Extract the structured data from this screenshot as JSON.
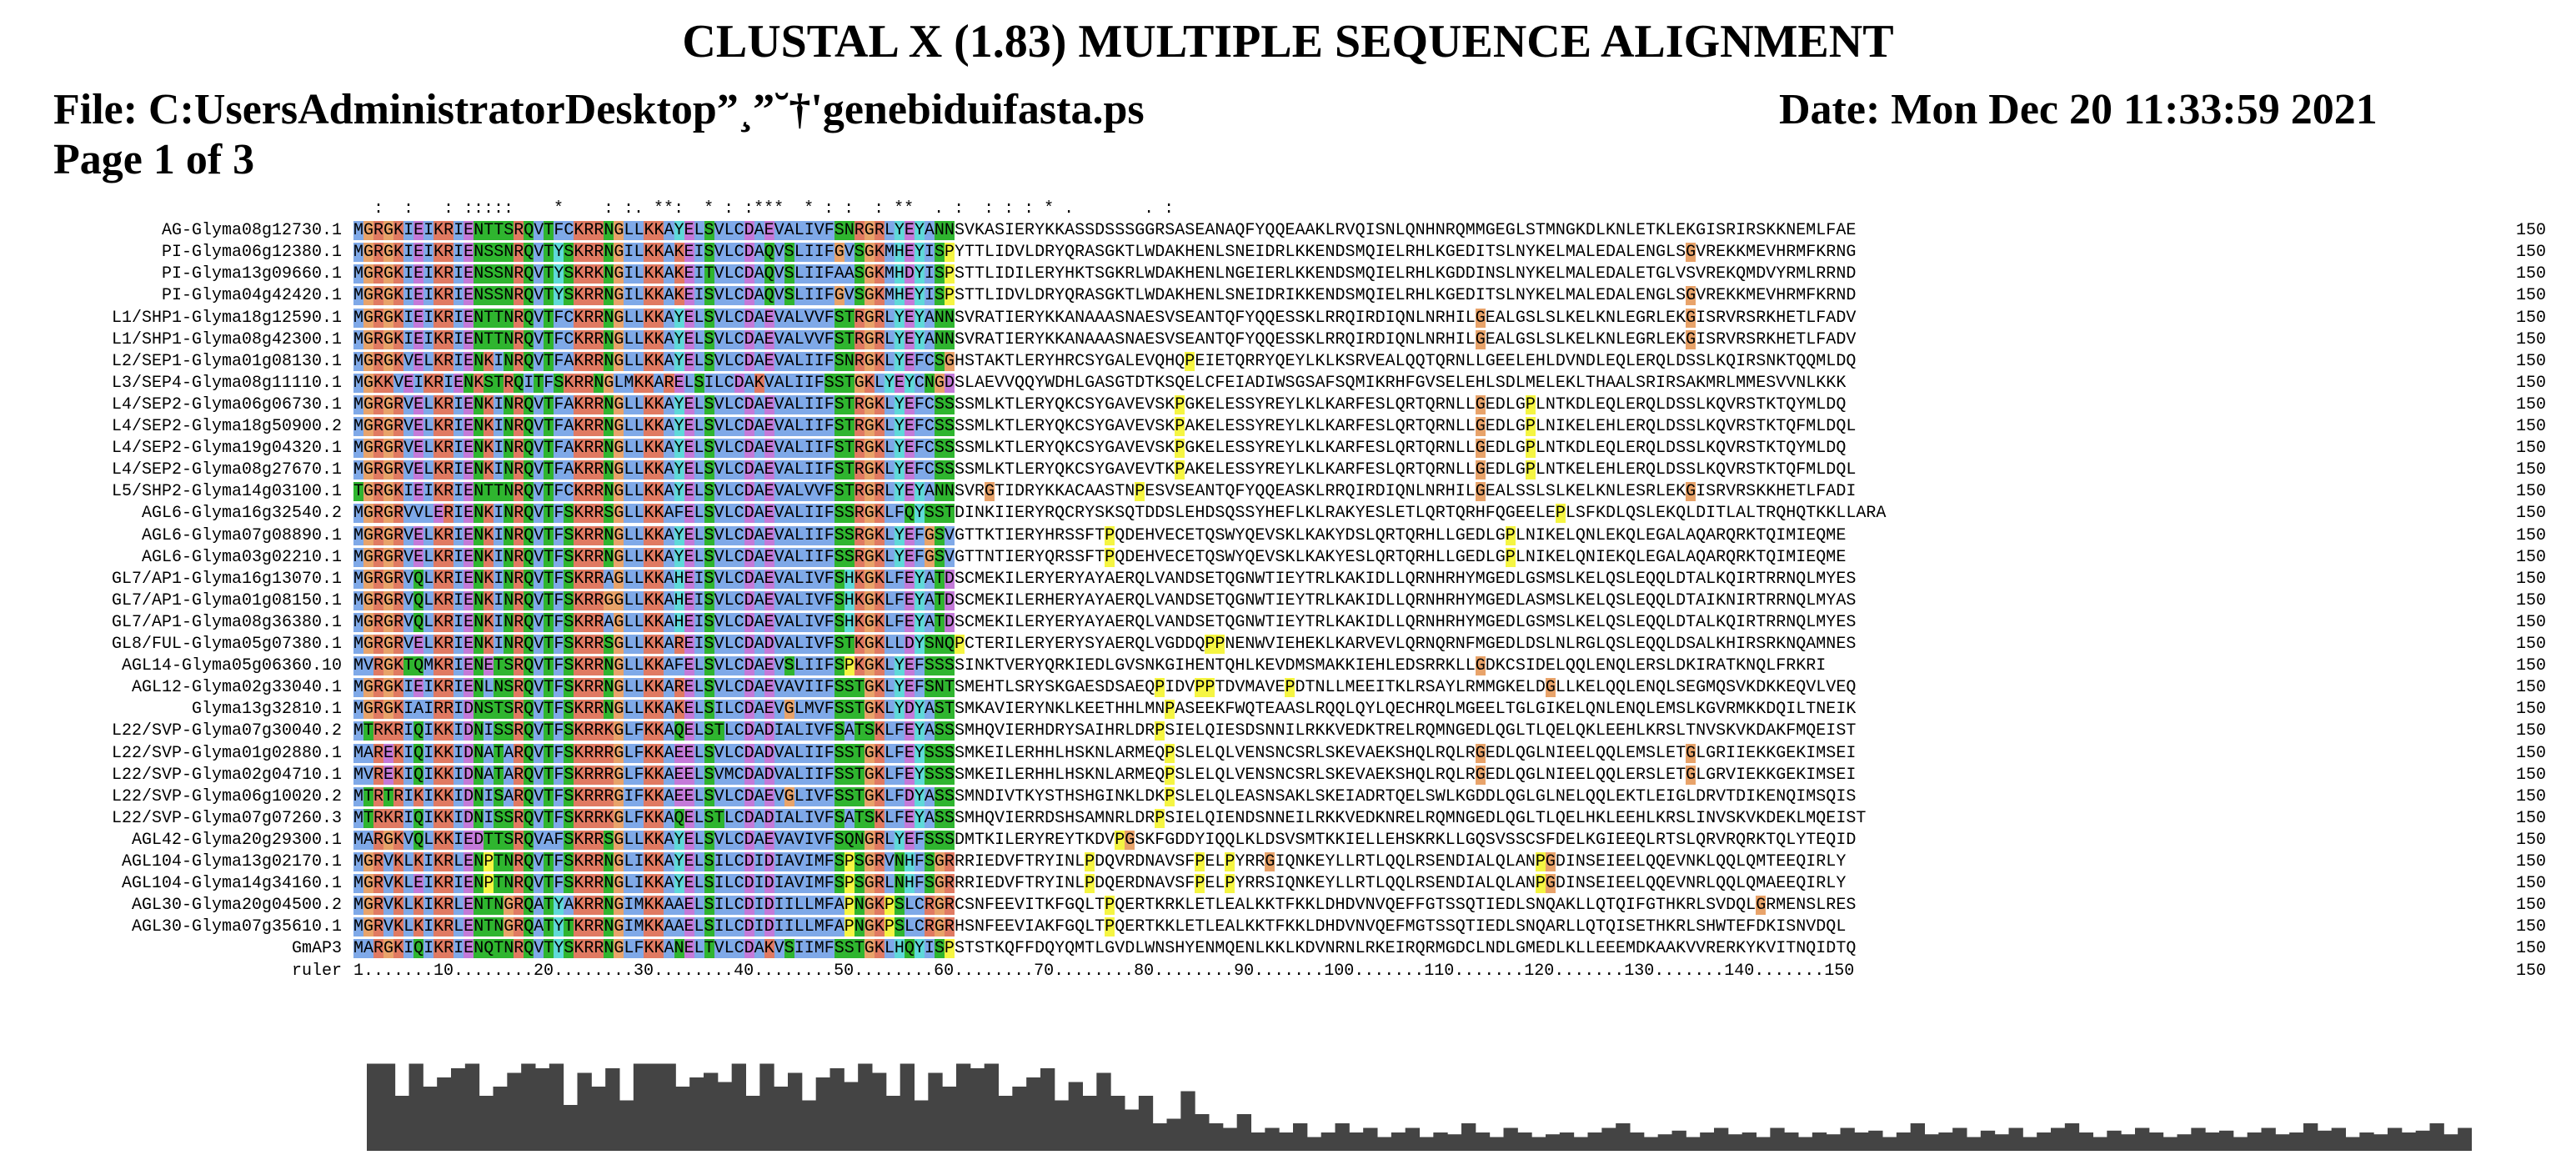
{
  "header": {
    "title": "CLUSTAL X (1.83) MULTIPLE SEQUENCE ALIGNMENT",
    "file": "File: C:UsersAdministratorDesktop”¸”˘†'genebiduifasta.ps",
    "date": "Date: Mon Dec 20 11:33:59 2021",
    "page": "Page 1 of 3"
  },
  "alignment": {
    "conservation_line": "  :  :   : :::::    *    : :. **:  * : :***  * : :  : **  . :  : : : * .       . :",
    "end_position": "150",
    "rows": [
      {
        "name": "AG-Glyma08g12730.1",
        "seq": "MGRGKIEIKRIENTTSRQVTFCKRRNGLLKKAYELSVLCDAEVALIVFSNRGRLYEYANNSVKASIERYKKASSDSSSGGRSASEANAQFYQQEAAKLRVQISNLQNHNRQMMGEGLSTMNGKDLKNLETKLEKGISRIRSKKNEMLFAE"
      },
      {
        "name": "PI-Glyma06g12380.1",
        "seq": "MGRGKIEIKRIENSSNRQVTYSKRRNGILKKAKEISVLCDAQVSLIIFGVSGKMHEYISPYTTLIDVLDRYQRASGKTLWDAKHENLSNEIDRLKKENDSMQIELRHLKGEDITSLNYKELMALEDALENGLSGVREKKMEVHRMFKRNG"
      },
      {
        "name": "PI-Glyma13g09660.1",
        "seq": "MGRGKIEIKRIENSSNRQVTYSKRKNGILKKAKEITVLCDAQVSLIIFAASGKMHDYISPSTTLIDILERYHKTSGKRLWDAKHENLNGEIERLKKENDSMQIELRHLKGDDINSLNYKELMALEDALETGLVSVREKQMDVYRMLRRND"
      },
      {
        "name": "PI-Glyma04g42420.1",
        "seq": "MGRGKIEIKRIENSSNRQVTYSKRRNGILKKAKEISVLCDAQVSLIIFGVSGKMHEYISPSTTLIDVLDRYQRASGKTLWDAKHENLSNEIDRIKKENDSMQIELRHLKGEDITSLNYKELMALEDALENGLSGVREKKMEVHRMFKRND"
      },
      {
        "name": "L1/SHP1-Glyma18g12590.1",
        "seq": "MGRGKIEIKRIENTTNRQVTFCKRRNGLLKKAYELSVLCDAEVALVVFSTRGRLYEYANNSVRATIERYKKANAAASNAESVSEANTQFYQQESSKLRRQIRDIQNLNRHILGEALGSLSLKELKNLEGRLEKGISRVRSRKHETLFADV"
      },
      {
        "name": "L1/SHP1-Glyma08g42300.1",
        "seq": "MGRGKIEIKRIENTTNRQVTFCKRRNGLLKKAYELSVLCDAEVALVVFSTRGRLYEYANNSVRATIERYKKANAAASNAESVSEANTQFYQQESSKLRRQIRDIQNLNRHILGEALGSLSLKELKNLEGRLEKGISRVRSRKHETLFADV"
      },
      {
        "name": "L2/SEP1-Glyma01g08130.1",
        "seq": "MGRGKVELKRIENKINRQVTFAKRRNGLLKKAYELSVLCDAEVALIIFSNRGKLYEFCSGHSTAKTLERYHRCSYGALEVQHQPEIETQRRYQEYLKLKSRVEALQQTQRNLLGEELEHLDVNDLEQLERQLDSSLKQIRSNKTQQMLDQ"
      },
      {
        "name": "L3/SEP4-Glyma08g11110.1",
        "seq": "MGKKVEIKRIENKSTRQITFSKRRNGLMKKARELSILCDAKVALIIFSSTGKLYEYCNGDSLAEVVQQYWDHLGASGTDTKSQELCFEIADIWSGSAFSQMIKRHFGVSELEHLSDLMELEKLTHAALSRIRSAKMRLMMESVVNLKKK"
      },
      {
        "name": "L4/SEP2-Glyma06g06730.1",
        "seq": "MGRGRVELKRIENKINRQVTFAKRRNGLLKKAYELSVLCDAEVALIIFSTRGKLYEFCSSSSMLKTLERYQKCSYGAVEVSKPGKELESSYREYLKLKARFESLQRTQRNLLGEDLGPLNTKDLEQLERQLDSSLKQVRSTKTQYMLDQ"
      },
      {
        "name": "L4/SEP2-Glyma18g50900.2",
        "seq": "MGRGRVELKRIENKINRQVTFAKRRNGLLKKAYELSVLCDAEVALIIFSTRGKLYEFCSSSSMLKTLERYQKCSYGAVEVSKPAKELESSYREYLKLKARFESLQRTQRNLLGEDLGPLNIKELEHLERQLDSSLKQVRSTKTQFMLDQL"
      },
      {
        "name": "L4/SEP2-Glyma19g04320.1",
        "seq": "MGRGRVELKRIENKINRQVTFAKRRNGLLKKAYELSVLCDAEVALIIFSTRGKLYEFCSSSSMLKTLERYQKCSYGAVEVSKPGKELESSYREYLKLKARFESLQRTQRNLLGEDLGPLNTKDLEQLERQLDSSLKQVRSTKTQYMLDQ"
      },
      {
        "name": "L4/SEP2-Glyma08g27670.1",
        "seq": "MGRGRVELKRIENKINRQVTFAKRRNGLLKKAYELSVLCDAEVALIIFSTRGKLYEFCSSSSMLKTLERYQKCSYGAVEVTKPAKELESSYREYLKLKARFESLQRTQRNLLGEDLGPLNTKELEHLERQLDSSLKQVRSTKTQFMLDQL"
      },
      {
        "name": "L5/SHP2-Glyma14g03100.1",
        "seq": "TGRGKIEIKRIENTTNRQVTFCKRRNGLLKKAYELSVLCDAEVALVVFSTRGRLYEYANNSVRGTIDRYKKACAASTNPESVSEANTQFYQQEASKLRRQIRDIQNLNRHILGEALSSLSLKELKNLESRLEKGISRVRSKKHETLFADI"
      },
      {
        "name": "AGL6-Glyma16g32540.2",
        "seq": "MGRGRVVLERIENKINRQVTFSKRRSGLLKKAFELSVLCDAEVALIIFSSRGKLFQYSSTDINKIIERYRQCRYSKSQTDDSLEHDSQSSYHEFLKLRAKYESLETLQRTQRHFQGEELEPLSFKDLQSLEKQLDITLALTRQHQTKKLLARA"
      },
      {
        "name": "AGL6-Glyma07g08890.1",
        "seq": "MGRGRVELKRIENKINRQVTFSKRRNGLLKKAYELSVLCDAEVALIIFSSRGKLYEFGSVGTTKTIERYHRSSFTPQDEHVECETQSWYQEVSKLKAKYDSLQRTQRHLLGEDLGPLNIKELQNLEKQLEGALAQARQRKTQIMIEQME"
      },
      {
        "name": "AGL6-Glyma03g02210.1",
        "seq": "MGRGRVELKRIENKINRQVTFSKRRNGLLKKAYELSVLCDAEVALIIFSSRGKLYEFGSVGTTNTIERYQRSSFTPQDEHVECETQSWYQEVSKLKAKYESLQRTQRHLLGEDLGPLNIKELQNIEKQLEGALAQARQRKTQIMIEQME"
      },
      {
        "name": "GL7/AP1-Glyma16g13070.1",
        "seq": "MGRGRVQLKRIENKINRQVTFSKRRAGLLKKAHEISVLCDAEVALIVFSHKGKLFEYATDSCMEKILERYERYAYAERQLVANDSETQGNWTIEYTRLKAKIDLLQRNHRHYMGEDLGSMSLKELQSLEQQLDTALKQIRTRRNQLMYES"
      },
      {
        "name": "GL7/AP1-Glyma01g08150.1",
        "seq": "MGRGRVQLKRIENKINRQVTFSKRRGGLLKKAHEISVLCDAEVALIVFSHKGKLFEYATDSCMEKILERHERYAYAERQLVANDSETQGNWTIEYTRLKAKIDLLQRNHRHYMGEDLASMSLKELQSLEQQLDTAIKNIRTRRNQLMYAS"
      },
      {
        "name": "GL7/AP1-Glyma08g36380.1",
        "seq": "MGRGRVQLKRIENKINRQVTFSKRRAGLLKKAHEISVLCDAEVALIVFSHKGKLFEYATDSCMEKILERYERYAYAERQLVANDSETQGNWTIEYTRLKAKIDLLQRNHRHYMGEDLGSMSLKELQSLEQQLDTALKQIRTRRNQLMYES"
      },
      {
        "name": "GL8/FUL-Glyma05g07380.1",
        "seq": "MGRGRVELKRIENKINRQVTFSKRRSGLLKKAREISVLCDADVALIVFSTKGKLLDYSNQPCTERILERYERYSYAERQLVGDDQPPNENWVIEHEKLKARVEVLQRNQRNFMGEDLDSLNLRGLQSLEQQLDSALKHIRSRKNQAMNES"
      },
      {
        "name": "AGL14-Glyma05g06360.10",
        "seq": "MVRGKTQMKRIENETSRQVTFSKRRNGLLKKAFELSVLCDAEVSLIIFSPKGKLYEFSSSSINKTVERYQRKIEDLGVSNKGIHENTQHLKEVDMSMAKKIEHLEDSRRKLLGDKCSIDELQQLENQLERSLDKIRATKNQLFRKRI"
      },
      {
        "name": "AGL12-Glyma02g33040.1",
        "seq": "MGRGKIEIKRIENLNSRQVTFSKRRNGLLKKARELSVLCDAEVAVIIFSSTGKLYEFSNTSMEHTLSRYSKGAESDSAEQPIDVPPTDVMAVEPDTNLLMEEITKLRSAYLRMMGKELDGLLKELQQLENQLSEGMQSVKDKKEQVLVEQ"
      },
      {
        "name": "Glyma13g32810.1",
        "seq": "MGRGKIAIRRIDNSTSRQVTFSKRRNGLLKKAKELSILCDAEVGLMVFSSTGKLYDYASTSMKAVIERYNKLKEETHHLMNPASEEKFWQTEAASLRQQLQYLQECHRQLMGEELTGLGIKELQNLENQLEMSLKGVRMKKDQILTNEIK"
      },
      {
        "name": "L22/SVP-Glyma07g30040.2",
        "seq": "MTRKRIQIKKIDNISSRQVTFSKRRKGLFKKAQELSTLCDADIALIVFSATSKLFEYASSSMHQVIERHDRYSAIHRLDRPSIELQIESDSNNILRKKVEDKTRELRQMNGEDLQGLTLQELQKLEEHLKRSLTNVSKVKDAKFMQEIST"
      },
      {
        "name": "L22/SVP-Glyma01g02880.1",
        "seq": "MAREKIQIKKIDNATARQVTFSKRRRGLFKKAEELSVLCDADVALIIFSSTGKLFEYSSSSMKEILERHHLHSKNLARMEQPSLELQLVENSNCSRLSKEVAEKSHQLRQLRGEDLQGLNIEELQQLEMSLETGLGRIIEKKGEKIMSEI"
      },
      {
        "name": "L22/SVP-Glyma02g04710.1",
        "seq": "MVREKIQIKKIDNATARQVTFSKRRRGLFKKAEELSVMCDADVALIIFSSTGKLFEYSSSSMKEILERHHLHSKNLARMEQPSLELQLVENSNCSRLSKEVAEKSHQLRQLRGEDLQGLNIEELQQLERSLETGLGRVIEKKGEKIMSEI"
      },
      {
        "name": "L22/SVP-Glyma06g10020.2",
        "seq": "MTRTRIKIKKIDNISARQVTFSKRRRGIFKKAEELSVLCDAEVGLIVFSSTGKLFDYASSSMNDIVTKYSTHSHGINKLDKPSLELQLEASNSAKLSKEIADRTQELSWLKGDDLQGLGLNELQQLEKTLEIGLDRVTDIKENQIMSQIS"
      },
      {
        "name": "L22/SVP-Glyma07g07260.3",
        "seq": "MTRKRIQIKKIDNISSRQVTFSKRRKGLFKKAQELSTLCDADIALIVFSATSKLFEYASSSMHQVIERRDSHSAMNRLDRPSIELQIENDSNNEILRKKVEDKNRELRQMNGEDLQGLTLQELHKLEEHLKRSLINVSKVKDEKLMQEIST"
      },
      {
        "name": "AGL42-Glyma20g29300.1",
        "seq": "MARGKVQLKKIEDTTSRQVAFSKRRSGLLKKAYELSVLCDAEVAVIVFSQNGRLYEFSSSDMTKILERYREYTKDVPGSKFGDDYIQQLKLDSVSMTKKIELLEHSKRKLLGQSVSSCSFDELKGIEEQLRTSLQRVRQRKTQLYTEQID"
      },
      {
        "name": "AGL104-Glyma13g02170.1",
        "seq": "MGRVKLKIKRLENPTNRQVTFSKRRNGLIKKAYELSILCDIDIAVIMFSPSGRVNHFSGRRRIEDVFTRYINLPDQVRDNAVSFPELPYRRGIQNKEYLLRTLQQLRSENDIALQLANPGDINSEIEELQQEVNKLQQLQMTEEQIRLY"
      },
      {
        "name": "AGL104-Glyma14g34160.1",
        "seq": "MGRVKLEIKRIENPTNRQVTFSKRRNGLIKKAYELSILCDIDIAVIMFSPSGRLNHFSGRRRIEDVFTRYINLPDQERDNAVSFPELPYRRSIQNKEYLLRTLQQLRSENDIALQLANPGDINSEIEELQQEVNRLQQLQMAEEQIRLY"
      },
      {
        "name": "AGL30-Glyma20g04500.2",
        "seq": "MGRVKLKIKRLENTNGRQATYAKRRNGIMKKAAELSILCDIDIILLMFAPNGKPSLCRGRCSNFEEVITKFGQLTPQERTKRKLETLEALKKTFKKLDHDVNVQEFFGTSSQTIEDLSNQAKLLQTQIFGTHKRLSVDQLGRMENSLRES"
      },
      {
        "name": "AGL30-Glyma07g35610.1",
        "seq": "MGRVKLKIKRLENTNGRQATYTKRRNGIMKKAAELSILCDIDIILLMFAPNGKPSLCRGRHSNFEEVIAKFGQLTPQERTKKLETLEALKKTFKKLDHDVNVQEFMGTSSQTIEDLSNQARLLQTQISETHKRLSHWTEFDKISNVDQL"
      },
      {
        "name": "GmAP3",
        "seq": "MARGKIQIKRIENQTNRQVTYSKRRNGLFKKANELTVLCDAKVSIIMFSSTGKLHQYISPSTSTKQFFDQYQMTLGVDLWNSHYENMQENLKKLKDVNRNLRKEIRQRMGDCLNDLGMEDLKLLEEEMDKAAKVVRERKYKVITNQIDTQ"
      },
      {
        "name": "ruler",
        "seq": "1.......10........20........30........40........50........60........70........80........90.......100.......110.......120.......130.......140.......150"
      }
    ],
    "colors": {
      "hydrophobic_blue": "#7fa9e8",
      "cyan": "#5fd9d9",
      "green": "#2fb52f",
      "red": "#e07a62",
      "magenta": "#c47ad9",
      "orange": "#e8a36a",
      "yellow": "#f5f542",
      "histogram": "#444444"
    }
  },
  "quality_histogram": [
    95,
    95,
    60,
    95,
    70,
    80,
    90,
    95,
    60,
    70,
    85,
    95,
    90,
    95,
    50,
    85,
    70,
    90,
    55,
    95,
    95,
    95,
    70,
    80,
    85,
    75,
    95,
    60,
    95,
    70,
    85,
    55,
    80,
    90,
    75,
    95,
    85,
    60,
    95,
    55,
    85,
    70,
    95,
    90,
    95,
    60,
    70,
    80,
    90,
    55,
    75,
    60,
    85,
    60,
    45,
    60,
    30,
    35,
    65,
    40,
    30,
    25,
    40,
    20,
    25,
    20,
    30,
    15,
    20,
    30,
    20,
    25,
    15,
    20,
    25,
    15,
    20,
    18,
    30,
    20,
    15,
    25,
    20,
    15,
    18,
    20,
    15,
    20,
    25,
    30,
    20,
    15,
    18,
    22,
    15,
    20,
    25,
    18,
    20,
    15,
    25,
    20,
    15,
    20,
    18,
    25,
    20,
    22,
    15,
    20,
    30,
    18,
    20,
    25,
    15,
    22,
    18,
    25,
    15,
    20,
    25,
    30,
    20,
    15,
    22,
    18,
    25,
    20,
    15,
    18,
    25,
    20,
    22,
    15,
    20,
    25,
    18,
    20,
    30,
    22,
    25,
    15,
    20,
    18,
    25,
    20,
    22,
    30,
    18,
    25
  ]
}
